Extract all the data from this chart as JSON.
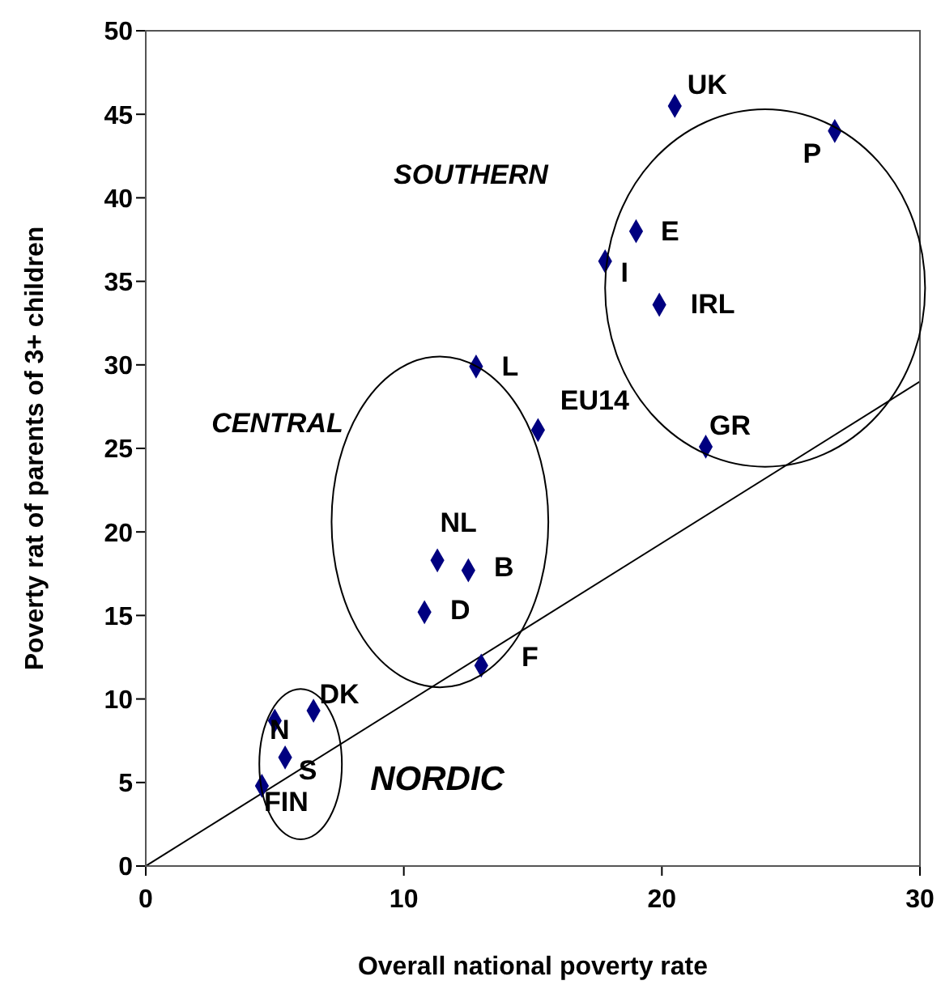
{
  "chart_data": {
    "type": "scatter",
    "xlabel": "Overall national poverty rate",
    "ylabel": "Poverty rat of parents of 3+ children",
    "xlim": [
      0,
      30
    ],
    "xticks": [
      0,
      10,
      20,
      30
    ],
    "ylim": [
      0,
      50
    ],
    "yticks": [
      0,
      5,
      10,
      15,
      20,
      25,
      30,
      35,
      40,
      45,
      50
    ],
    "marker": "diamond",
    "tick_labels": "xy",
    "series": [
      {
        "type": "scatter",
        "color": "#000080",
        "x": [
          20.5,
          26.7,
          19.0,
          17.8,
          19.9,
          21.7,
          12.8,
          15.2,
          11.3,
          12.5,
          10.8,
          13.0,
          6.5,
          5.0,
          5.4,
          4.5
        ],
        "values": [
          45.5,
          44.0,
          38.0,
          36.2,
          33.6,
          25.1,
          29.9,
          26.1,
          18.3,
          17.7,
          15.2,
          12.0,
          9.3,
          8.7,
          6.5,
          4.8
        ]
      },
      {
        "type": "line",
        "color": "#000000",
        "x": [
          0,
          30
        ],
        "values": [
          0,
          29
        ],
        "marker": "none"
      }
    ],
    "annotations": [
      {
        "text": "UK",
        "x": 20.5,
        "y": 45.5
      },
      {
        "text": "P",
        "x": 26.7,
        "y": 44.0
      },
      {
        "text": "E",
        "x": 19.0,
        "y": 38.0
      },
      {
        "text": "I",
        "x": 17.8,
        "y": 36.2
      },
      {
        "text": "IRL",
        "x": 19.9,
        "y": 33.6
      },
      {
        "text": "GR",
        "x": 21.7,
        "y": 25.1
      },
      {
        "text": "L",
        "x": 12.8,
        "y": 29.9
      },
      {
        "text": "EU14",
        "x": 15.2,
        "y": 26.1
      },
      {
        "text": "NL",
        "x": 11.3,
        "y": 18.3
      },
      {
        "text": "B",
        "x": 12.5,
        "y": 17.7
      },
      {
        "text": "D",
        "x": 10.8,
        "y": 15.2
      },
      {
        "text": "F",
        "x": 13.0,
        "y": 12.0
      },
      {
        "text": "DK",
        "x": 6.5,
        "y": 9.3
      },
      {
        "text": "N",
        "x": 5.0,
        "y": 8.7
      },
      {
        "text": "S",
        "x": 5.4,
        "y": 6.5
      },
      {
        "text": "FIN",
        "x": 4.5,
        "y": 4.8
      },
      "SOUTHERN",
      "CENTRAL",
      "NORDIC"
    ]
  }
}
